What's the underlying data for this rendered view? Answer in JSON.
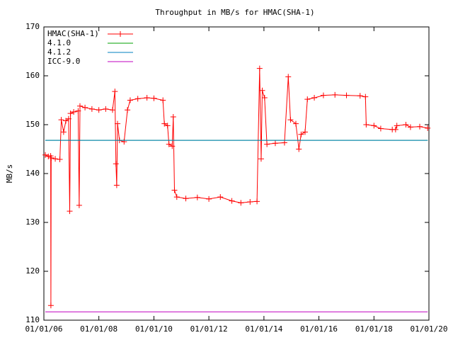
{
  "chart_data": {
    "type": "line",
    "title": "Throughput in MB/s for HMAC(SHA-1)",
    "y_label": "MB/s",
    "xlim": [
      "01/01/06",
      "01/01/20"
    ],
    "xticks": [
      "01/01/06",
      "01/01/08",
      "01/01/10",
      "01/01/12",
      "01/01/14",
      "01/01/16",
      "01/01/18",
      "01/01/20"
    ],
    "ylim": [
      110,
      170
    ],
    "yticks": [
      110,
      120,
      130,
      140,
      150,
      160,
      170
    ],
    "grid": false,
    "legend": "top-left",
    "series": [
      {
        "name": "HMAC(SHA-1)",
        "color": "#ff0000",
        "marker": "+",
        "x": [
          "01/20/06",
          "03/01/06",
          "04/01/06",
          "04/04/06",
          "04/08/06",
          "06/01/06",
          "08/01/06",
          "08/20/06",
          "09/20/06",
          "10/20/06",
          "11/25/06",
          "12/10/06",
          "12/20/06",
          "02/01/07",
          "04/01/07",
          "04/15/07",
          "04/25/07",
          "07/01/07",
          "10/01/07",
          "01/01/08",
          "04/01/08",
          "07/01/08",
          "08/01/08",
          "08/15/08",
          "08/25/08",
          "09/05/08",
          "10/01/08",
          "12/01/08",
          "01/15/09",
          "02/20/09",
          "06/01/09",
          "10/01/09",
          "01/01/10",
          "05/01/10",
          "05/20/10",
          "07/01/10",
          "07/20/10",
          "09/01/10",
          "09/15/10",
          "10/01/10",
          "11/01/10",
          "03/01/11",
          "08/01/11",
          "01/01/12",
          "06/01/12",
          "11/01/12",
          "03/01/13",
          "07/01/13",
          "10/01/13",
          "11/05/13",
          "11/25/13",
          "12/10/13",
          "01/10/14",
          "02/10/14",
          "06/01/14",
          "10/01/14",
          "11/20/14",
          "12/20/14",
          "03/01/15",
          "04/10/15",
          "05/10/15",
          "07/01/15",
          "08/01/15",
          "11/01/15",
          "03/01/16",
          "08/01/16",
          "01/01/17",
          "07/01/17",
          "09/10/17",
          "09/20/17",
          "01/01/18",
          "04/01/18",
          "09/01/18",
          "10/15/18",
          "11/01/18",
          "03/01/19",
          "05/01/19",
          "09/01/19",
          "12/15/19"
        ],
        "values": [
          143.8,
          143.5,
          143.6,
          113,
          143.2,
          143.0,
          142.9,
          151.0,
          148.5,
          150.8,
          151.2,
          132.3,
          152.3,
          152.6,
          152.8,
          133.5,
          153.8,
          153.5,
          153.2,
          153.0,
          153.2,
          153.0,
          156.8,
          142.0,
          137.6,
          150.2,
          146.8,
          146.5,
          153.0,
          155.0,
          155.3,
          155.5,
          155.4,
          155.0,
          150.2,
          149.8,
          146.0,
          145.6,
          151.6,
          136.6,
          135.2,
          134.9,
          135.1,
          134.8,
          135.2,
          134.4,
          134.0,
          134.2,
          134.3,
          161.5,
          143.0,
          157.0,
          155.5,
          146.0,
          146.2,
          146.3,
          159.8,
          151.0,
          150.2,
          145.0,
          148.0,
          148.5,
          155.2,
          155.5,
          156.0,
          156.1,
          156.0,
          155.9,
          155.7,
          150.0,
          149.8,
          149.2,
          149.0,
          149.0,
          149.8,
          150.0,
          149.5,
          149.6,
          149.3
        ]
      },
      {
        "name": "4.1.0",
        "color": "#00a000",
        "x": [
          "01/20/06",
          "12/15/19"
        ],
        "values": [
          146.8,
          146.8
        ]
      },
      {
        "name": "4.1.2",
        "color": "#0080c0",
        "x": [
          "01/20/06",
          "12/15/19"
        ],
        "values": [
          146.8,
          146.8
        ]
      },
      {
        "name": "ICC-9.0",
        "color": "#c000c0",
        "x": [
          "01/20/06",
          "12/15/19"
        ],
        "values": [
          111.7,
          111.7
        ]
      }
    ]
  }
}
